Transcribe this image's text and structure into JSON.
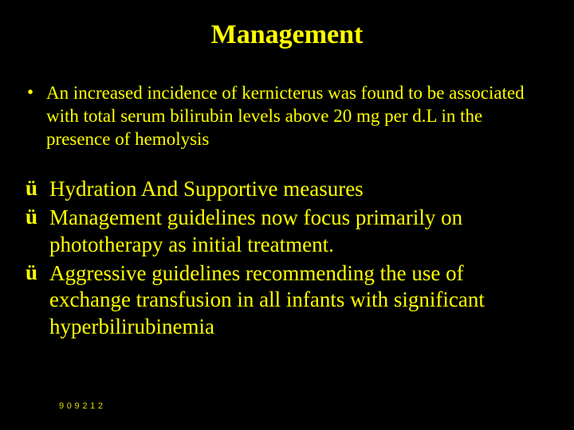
{
  "slide": {
    "title": "Management",
    "title_fontsize": 34,
    "title_color": "#ffff00",
    "background_color": "#000000",
    "bullet": {
      "marker": "•",
      "text": "An increased incidence of kernicterus was found to be associated with total serum bilirubin levels above 20 mg per d.L in the presence of hemolysis",
      "fontsize": 23,
      "color": "#ffff00"
    },
    "checks": [
      {
        "marker": "ü",
        "text": "Hydration And Supportive measures"
      },
      {
        "marker": "ü",
        "text": "Management guidelines now focus primarily on phototherapy as initial treatment."
      },
      {
        "marker": "ü",
        "text": "Aggressive guidelines recommending the use of exchange transfusion in all infants with significant hyperbilirubinemia"
      }
    ],
    "check_fontsize": 27,
    "check_color": "#ffff00",
    "footer": "9 0 9 2 1 2"
  }
}
